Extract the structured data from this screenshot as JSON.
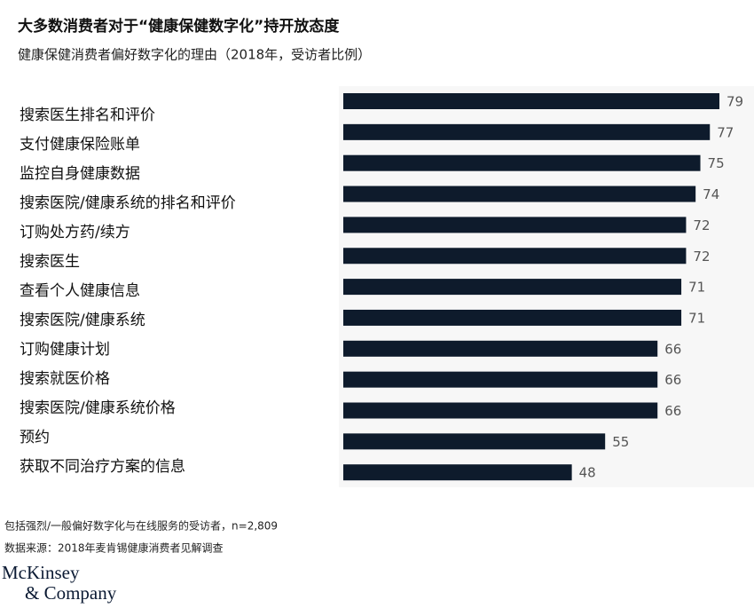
{
  "chart_data": {
    "type": "bar",
    "orientation": "horizontal",
    "title": "大多数消费者对于“健康保健数字化”持开放态度",
    "subtitle": "健康保健消费者偏好数字化的理由（2018年，受访者比例）",
    "categories": [
      "搜索医生排名和评价",
      "支付健康保险账单",
      "监控自身健康数据",
      "搜索医院/健康系统的排名和评价",
      "订购处方药/续方",
      "搜索医生",
      "查看个人健康信息",
      "搜索医院/健康系统",
      "订购健康计划",
      "搜索就医价格",
      "搜索医院/健康系统价格",
      "预约",
      "获取不同治疗方案的信息"
    ],
    "values": [
      79,
      77,
      75,
      74,
      72,
      72,
      71,
      71,
      66,
      66,
      66,
      55,
      48
    ],
    "color": "#0e1b2c",
    "footnote": "包括强烈/一般偏好数字化与在线服务的受访者，n=2,809",
    "source": "数据来源：2018年麦肯锡健康消费者见解调查",
    "logo": [
      "McKinsey",
      "& Company"
    ]
  }
}
